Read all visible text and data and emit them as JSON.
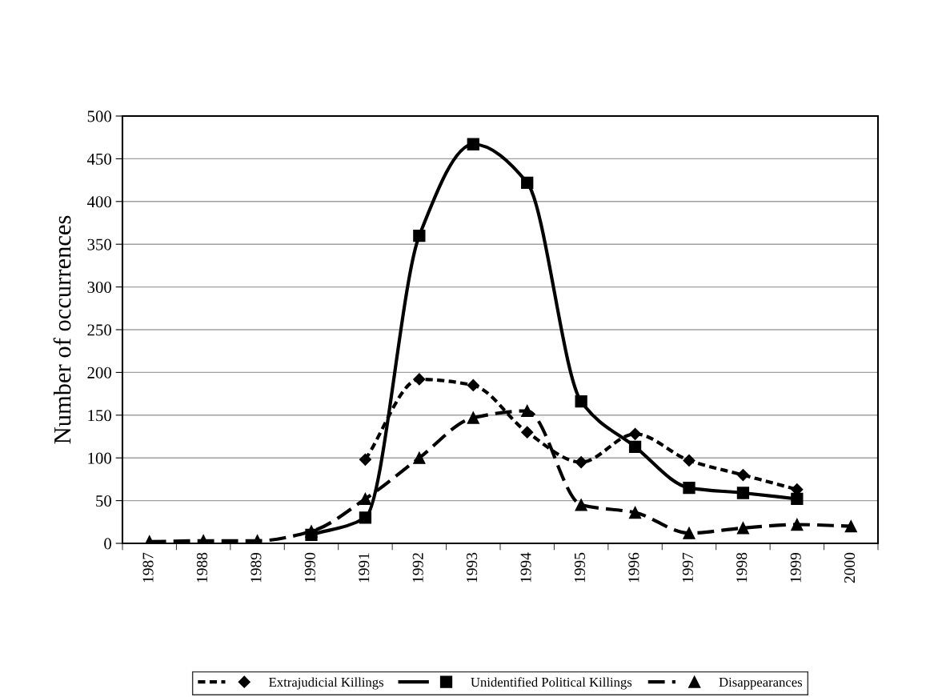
{
  "chart_data": {
    "type": "line",
    "ylabel": "Number of occurrences",
    "categories": [
      "1987",
      "1988",
      "1989",
      "1990",
      "1991",
      "1992",
      "1993",
      "1994",
      "1995",
      "1996",
      "1997",
      "1998",
      "1999",
      "2000"
    ],
    "ylim": [
      0,
      500
    ],
    "yticks": [
      0,
      50,
      100,
      150,
      200,
      250,
      300,
      350,
      400,
      450,
      500
    ],
    "grid": "y",
    "legend": "bottom",
    "series": [
      {
        "name": "Extrajudicial Killings",
        "color": "#000000",
        "marker": "diamond",
        "line_style": "dotted",
        "values": [
          null,
          null,
          null,
          null,
          98,
          192,
          185,
          130,
          95,
          128,
          97,
          80,
          63,
          null
        ]
      },
      {
        "name": "Unidentified Political Killings",
        "color": "#000000",
        "marker": "square",
        "line_style": "solid",
        "values": [
          null,
          null,
          null,
          10,
          30,
          360,
          467,
          422,
          166,
          113,
          65,
          59,
          52,
          null
        ]
      },
      {
        "name": "Disappearances",
        "color": "#000000",
        "marker": "triangle",
        "line_style": "dashed",
        "values": [
          2,
          3,
          3,
          14,
          52,
          100,
          147,
          155,
          45,
          36,
          12,
          18,
          22,
          20
        ]
      }
    ]
  }
}
